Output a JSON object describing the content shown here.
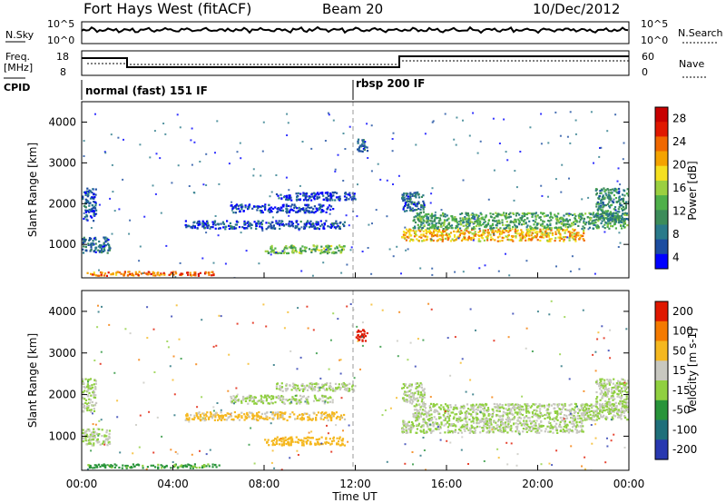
{
  "header": {
    "title": "Fort Hays West (fitACF)",
    "beam": "Beam 20",
    "date": "10/Dec/2012"
  },
  "params": {
    "nsky_label": "N.Sky",
    "nsearch_label": "N.Search",
    "freq_label_1": "Freq.",
    "freq_label_2": "[MHz]",
    "nave_label": "Nave",
    "cpid_label": "CPID",
    "nsky_ticks": [
      "10^5",
      "10^0"
    ],
    "freq_ticks": [
      "18",
      "8"
    ],
    "nave_ticks": [
      "60",
      "0"
    ],
    "cpid_segments": [
      {
        "start_hour": 0,
        "label": "normal (fast) 151 IF"
      },
      {
        "start_hour": 12,
        "label": "rbsp 200 IF"
      }
    ]
  },
  "chart_data": [
    {
      "type": "heatmap",
      "name": "power-panel",
      "ylabel": "Slant Range [km]",
      "xlabel": "",
      "xlim": [
        0,
        24
      ],
      "ylim": [
        180,
        4500
      ],
      "yticks": [
        1000,
        2000,
        3000,
        4000
      ],
      "colorbar": {
        "label": "Power [dB]",
        "ticks": [
          "28",
          "24",
          "20",
          "16",
          "12",
          "8",
          "4"
        ],
        "colors": [
          "#0000ff",
          "#1c4da0",
          "#2a7a8a",
          "#3c8c5a",
          "#4fb04a",
          "#9bd040",
          "#f5e020",
          "#f4a300",
          "#f06800",
          "#e01800",
          "#c80000"
        ]
      },
      "bands": [
        {
          "t0": 0.0,
          "t1": 0.6,
          "r0": 1600,
          "r1": 2400,
          "value": 6
        },
        {
          "t0": 0.0,
          "t1": 1.2,
          "r0": 800,
          "r1": 1200,
          "value": 8
        },
        {
          "t0": 0.2,
          "t1": 2.0,
          "r0": 250,
          "r1": 350,
          "value": 22
        },
        {
          "t0": 2.0,
          "t1": 6.0,
          "r0": 250,
          "r1": 350,
          "value": 24
        },
        {
          "t0": 4.5,
          "t1": 11.5,
          "r0": 1400,
          "r1": 1600,
          "value": 6
        },
        {
          "t0": 6.5,
          "t1": 11.0,
          "r0": 1800,
          "r1": 2000,
          "value": 5
        },
        {
          "t0": 8.0,
          "t1": 11.5,
          "r0": 800,
          "r1": 1000,
          "value": 14
        },
        {
          "t0": 8.5,
          "t1": 12.0,
          "r0": 2100,
          "r1": 2300,
          "value": 5
        },
        {
          "t0": 14.0,
          "t1": 22.0,
          "r0": 1100,
          "r1": 1400,
          "value": 20
        },
        {
          "t0": 14.5,
          "t1": 23.9,
          "r0": 1400,
          "r1": 1800,
          "value": 12
        },
        {
          "t0": 14.0,
          "t1": 15.0,
          "r0": 1800,
          "r1": 2300,
          "value": 8
        },
        {
          "t0": 22.5,
          "t1": 24.0,
          "r0": 1600,
          "r1": 2400,
          "value": 10
        },
        {
          "t0": 12.0,
          "t1": 12.5,
          "r0": 3300,
          "r1": 3600,
          "value": 6
        }
      ]
    },
    {
      "type": "heatmap",
      "name": "velocity-panel",
      "ylabel": "Slant Range [km]",
      "xlabel": "Time UT",
      "xlim": [
        0,
        24
      ],
      "ylim": [
        180,
        4500
      ],
      "yticks": [
        1000,
        2000,
        3000,
        4000
      ],
      "xticks": [
        "00:00",
        "04:00",
        "08:00",
        "12:00",
        "16:00",
        "20:00",
        "00:00"
      ],
      "colorbar": {
        "label": "Velocity [m s-1]",
        "ticks": [
          "200",
          "100",
          "50",
          "15",
          "-15",
          "-50",
          "-100",
          "-200"
        ],
        "colors": [
          "#2838b0",
          "#1f6f7a",
          "#28943a",
          "#90d040",
          "#c8c8c0",
          "#f5b820",
          "#f47a00",
          "#e01800"
        ]
      },
      "bands": [
        {
          "t0": 0.0,
          "t1": 0.6,
          "r0": 1600,
          "r1": 2400,
          "value": 0
        },
        {
          "t0": 0.0,
          "t1": 1.2,
          "r0": 800,
          "r1": 1200,
          "value": 0
        },
        {
          "t0": 0.2,
          "t1": 6.0,
          "r0": 250,
          "r1": 350,
          "value": 40
        },
        {
          "t0": 4.5,
          "t1": 11.5,
          "r0": 1400,
          "r1": 1600,
          "value": -40
        },
        {
          "t0": 6.5,
          "t1": 11.0,
          "r0": 1800,
          "r1": 2000,
          "value": 0
        },
        {
          "t0": 8.0,
          "t1": 11.5,
          "r0": 800,
          "r1": 1000,
          "value": -60
        },
        {
          "t0": 8.5,
          "t1": 12.0,
          "r0": 2100,
          "r1": 2300,
          "value": 0
        },
        {
          "t0": 14.0,
          "t1": 22.0,
          "r0": 1100,
          "r1": 1400,
          "value": 0
        },
        {
          "t0": 14.5,
          "t1": 23.9,
          "r0": 1400,
          "r1": 1800,
          "value": 0
        },
        {
          "t0": 14.0,
          "t1": 15.0,
          "r0": 1800,
          "r1": 2300,
          "value": 0
        },
        {
          "t0": 22.5,
          "t1": 24.0,
          "r0": 1600,
          "r1": 2400,
          "value": 0
        },
        {
          "t0": 12.0,
          "t1": 12.5,
          "r0": 3300,
          "r1": 3600,
          "value": -180
        }
      ]
    }
  ]
}
